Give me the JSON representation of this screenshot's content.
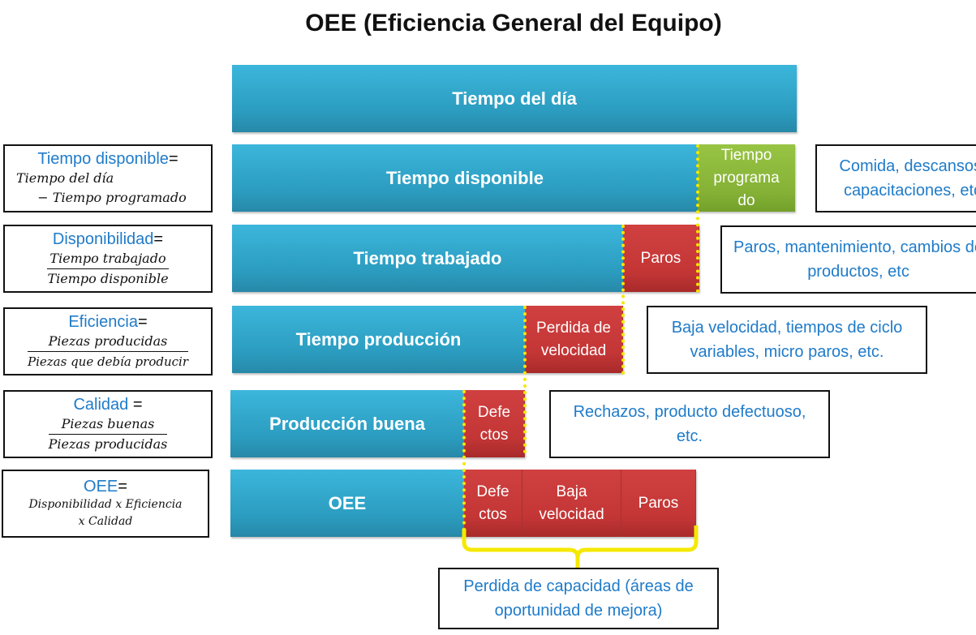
{
  "title": "OEE (Eficiencia General del Equipo)",
  "bars": {
    "dia": "Tiempo del  día",
    "disponible": "Tiempo disponible",
    "programado": "Tiempo programa do",
    "trabajado": "Tiempo trabajado",
    "paros": "Paros",
    "produccion": "Tiempo producción",
    "perdida_velocidad": "Perdida de velocidad",
    "buena": "Producción buena",
    "defectos": "Defe ctos",
    "oee": "OEE",
    "oee_defectos": "Defe ctos",
    "oee_baja": "Baja velocidad",
    "oee_paros": "Paros"
  },
  "formulas": [
    {
      "name": "Tiempo  disponible",
      "eq": "=",
      "line1": "Tiempo del día",
      "line2": "− Tiempo programado"
    },
    {
      "name": "Disponibilidad",
      "eq": "=",
      "num": "Tiempo trabajado",
      "den": "Tiempo disponible"
    },
    {
      "name": "Eficiencia",
      "eq": "=",
      "num": "Piezas producidas",
      "den": "Piezas que debía producir"
    },
    {
      "name": "Calidad",
      "eq": " =",
      "num": "Piezas buenas",
      "den": "Piezas producidas"
    },
    {
      "name": "OEE",
      "eq": "=",
      "line1": "Disponibilidad x Eficiencia",
      "line2": "x Calidad"
    }
  ],
  "notes": [
    "Comida, descansos, capacitaciones, etc",
    "Paros, mantenimiento, cambios de productos, etc",
    "Baja velocidad, tiempos de ciclo variables, micro paros, etc.",
    "Rechazos, producto defectuoso, etc.",
    "Perdida de capacidad (áreas de oportunidad de mejora)"
  ],
  "colors": {
    "blue": "#2b9cbf",
    "red": "#c43636",
    "green": "#85b236",
    "accent_text": "#1f7bc9",
    "dotted": "#f5e800"
  }
}
